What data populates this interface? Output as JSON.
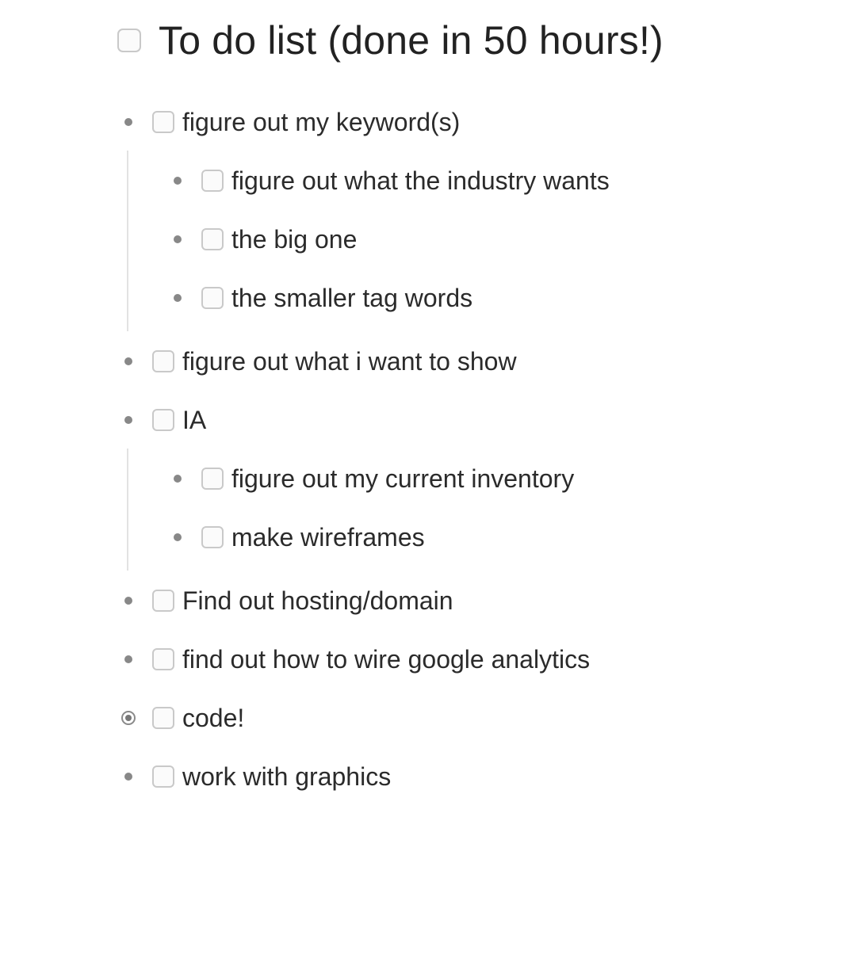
{
  "title": "To do list (done in 50 hours!)",
  "items": [
    {
      "label": "figure out my keyword(s)",
      "level": 1,
      "checked": false,
      "selected": false
    },
    {
      "label": "figure out what the industry wants",
      "level": 2,
      "checked": false,
      "selected": false
    },
    {
      "label": "the big one",
      "level": 2,
      "checked": false,
      "selected": false
    },
    {
      "label": "the smaller tag words",
      "level": 2,
      "checked": false,
      "selected": false
    },
    {
      "label": "figure out what i want to show",
      "level": 1,
      "checked": false,
      "selected": false
    },
    {
      "label": "IA",
      "level": 1,
      "checked": false,
      "selected": false
    },
    {
      "label": "figure out my current inventory",
      "level": 2,
      "checked": false,
      "selected": false
    },
    {
      "label": "make wireframes",
      "level": 2,
      "checked": false,
      "selected": false
    },
    {
      "label": "Find out hosting/domain",
      "level": 1,
      "checked": false,
      "selected": false
    },
    {
      "label": "find out how to wire google analytics",
      "level": 1,
      "checked": false,
      "selected": false
    },
    {
      "label": "code!",
      "level": 1,
      "checked": false,
      "selected": true
    },
    {
      "label": "work with graphics",
      "level": 1,
      "checked": false,
      "selected": false
    }
  ]
}
